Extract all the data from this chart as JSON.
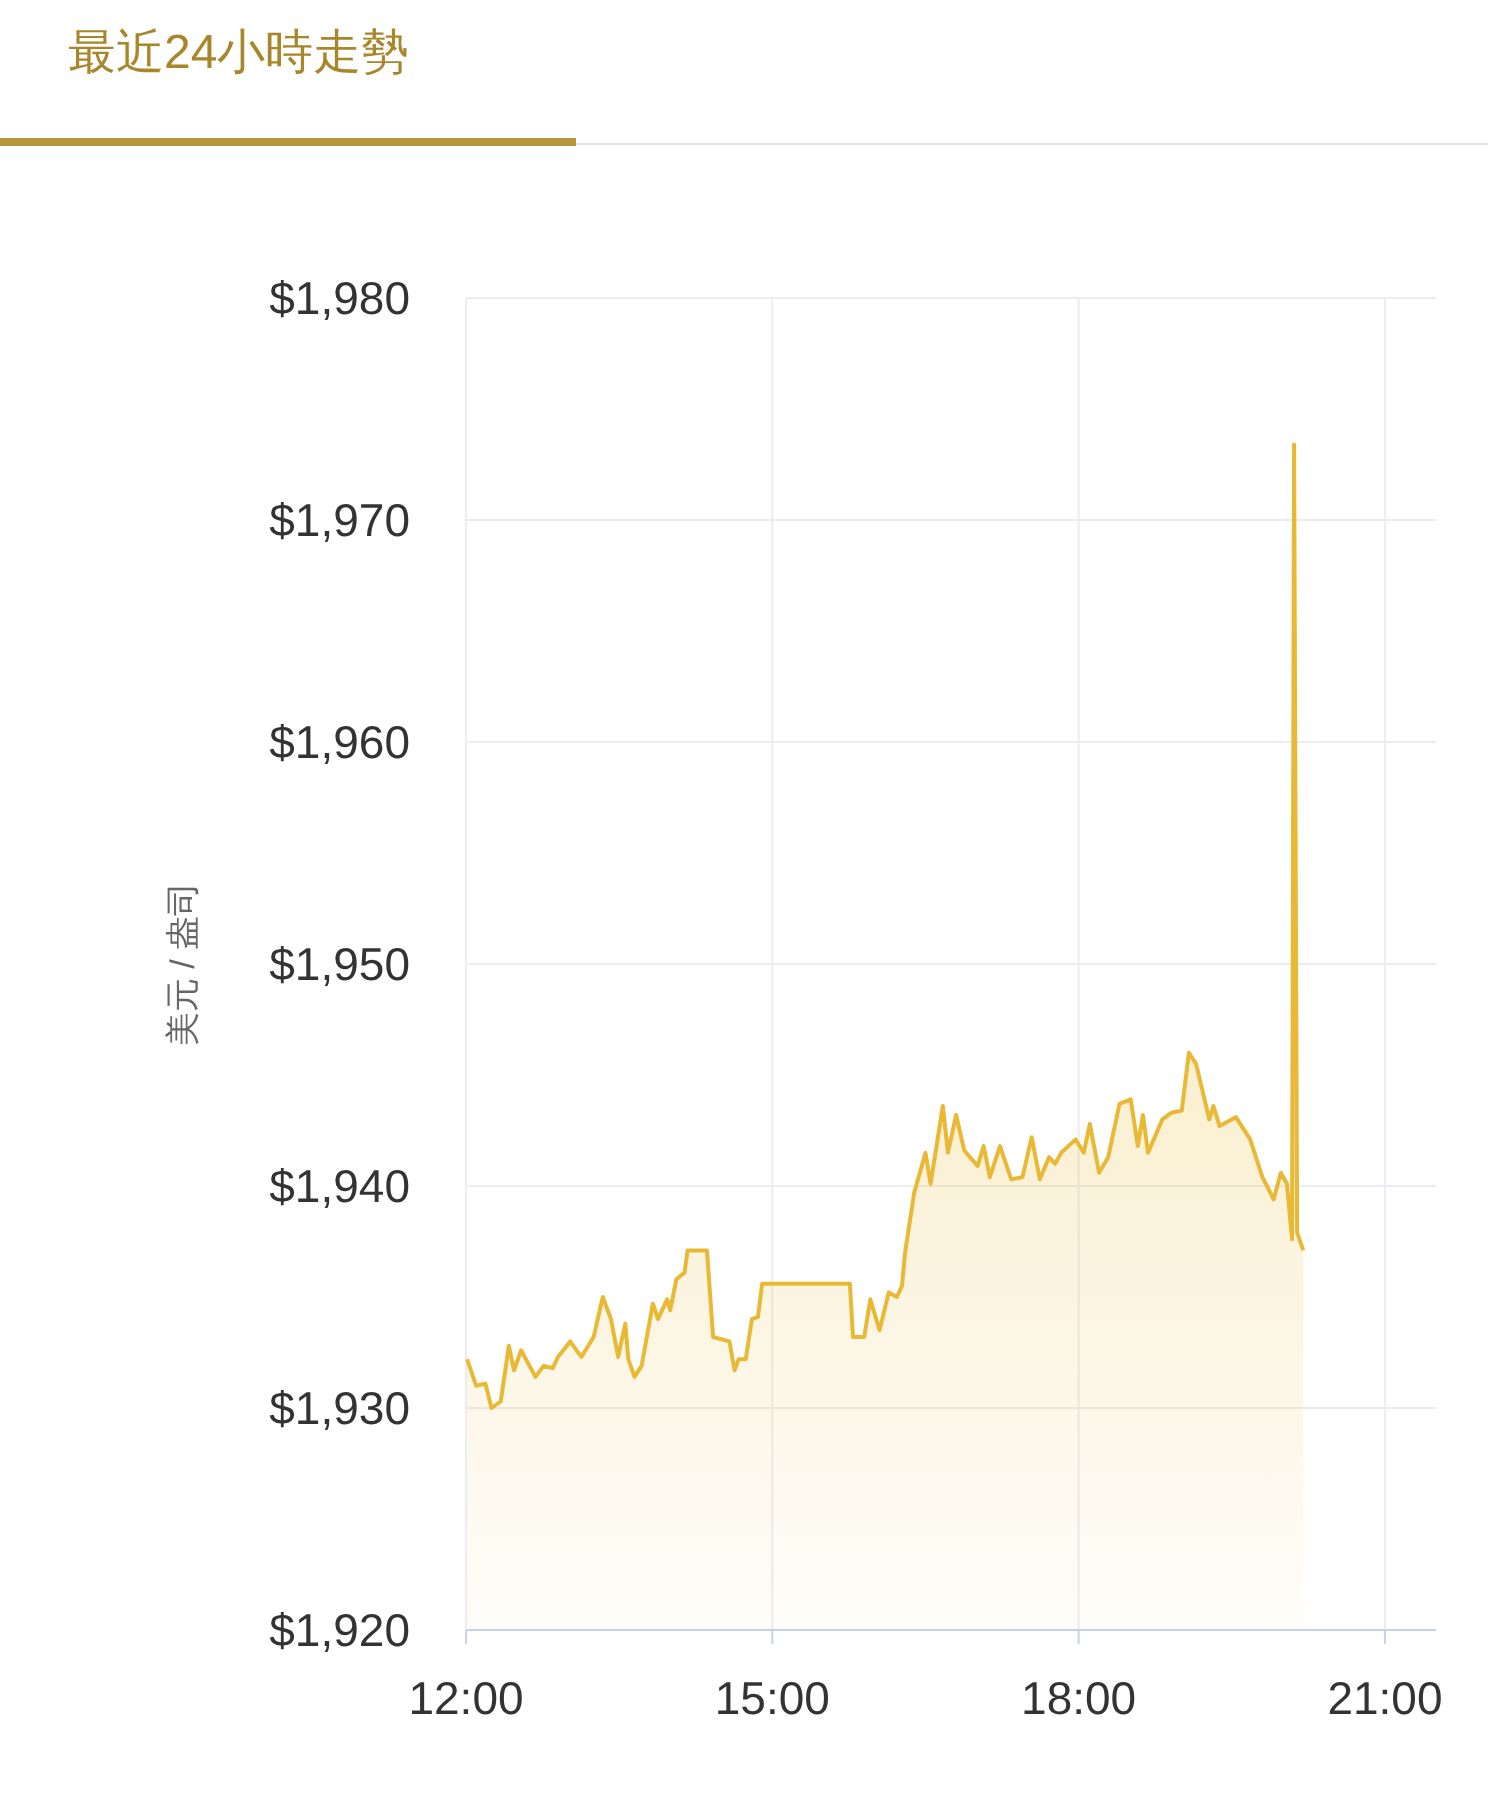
{
  "chart_data": {
    "type": "area",
    "title": "最近24小時走勢",
    "ylabel": "美元 / 盎司",
    "x": [
      12.01,
      12.1,
      12.19,
      12.25,
      12.34,
      12.42,
      12.47,
      12.54,
      12.68,
      12.76,
      12.85,
      12.9,
      13.02,
      13.13,
      13.25,
      13.34,
      13.42,
      13.49,
      13.56,
      13.59,
      13.65,
      13.72,
      13.83,
      13.88,
      13.97,
      14.0,
      14.06,
      14.14,
      14.17,
      14.36,
      14.42,
      14.58,
      14.63,
      14.67,
      14.74,
      14.8,
      14.86,
      14.9,
      15.76,
      15.79,
      15.9,
      15.96,
      16.05,
      16.14,
      16.22,
      16.27,
      16.3,
      16.39,
      16.5,
      16.55,
      16.67,
      16.72,
      16.8,
      16.88,
      17.01,
      17.07,
      17.13,
      17.23,
      17.34,
      17.45,
      17.54,
      17.62,
      17.71,
      17.77,
      17.83,
      17.97,
      18.05,
      18.11,
      18.2,
      18.29,
      18.4,
      18.51,
      18.58,
      18.63,
      18.68,
      18.82,
      18.91,
      19.01,
      19.08,
      19.15,
      19.28,
      19.32,
      19.38,
      19.54,
      19.68,
      19.8,
      19.91,
      19.98,
      20.04,
      20.09,
      20.11,
      20.14,
      20.2
    ],
    "series": [
      {
        "color": "#e9b935",
        "values": [
          1932.2,
          1931.0,
          1931.1,
          1930.0,
          1930.3,
          1932.8,
          1931.7,
          1932.6,
          1931.4,
          1931.9,
          1931.8,
          1932.3,
          1933.0,
          1932.3,
          1933.2,
          1935.0,
          1934.0,
          1932.3,
          1933.8,
          1932.2,
          1931.4,
          1931.9,
          1934.7,
          1934.0,
          1934.9,
          1934.4,
          1935.8,
          1936.1,
          1937.1,
          1937.1,
          1933.2,
          1933.0,
          1931.7,
          1932.2,
          1932.2,
          1934.0,
          1934.1,
          1935.6,
          1935.6,
          1933.2,
          1933.2,
          1934.9,
          1933.5,
          1935.2,
          1935.0,
          1935.5,
          1937.0,
          1939.7,
          1941.5,
          1940.1,
          1943.6,
          1941.5,
          1943.2,
          1941.6,
          1940.9,
          1941.8,
          1940.4,
          1941.8,
          1940.3,
          1940.4,
          1942.2,
          1940.3,
          1941.3,
          1941.0,
          1941.5,
          1942.1,
          1941.5,
          1942.8,
          1940.6,
          1941.3,
          1943.7,
          1943.9,
          1941.8,
          1943.2,
          1941.5,
          1943.0,
          1943.3,
          1943.4,
          1946.0,
          1945.5,
          1943.0,
          1943.6,
          1942.7,
          1943.1,
          1942.1,
          1940.4,
          1939.4,
          1940.6,
          1940.1,
          1937.6,
          1973.4,
          1937.9,
          1937.1
        ]
      }
    ],
    "xlim": [
      12,
      21.5
    ],
    "xticks": [
      {
        "value": 12,
        "label": "12:00"
      },
      {
        "value": 15,
        "label": "15:00"
      },
      {
        "value": 18,
        "label": "18:00"
      },
      {
        "value": 21,
        "label": "21:00"
      }
    ],
    "ylim": [
      1920,
      1980
    ],
    "yticks": [
      {
        "value": 1920,
        "label": "$1,920"
      },
      {
        "value": 1930,
        "label": "$1,930"
      },
      {
        "value": 1940,
        "label": "$1,940"
      },
      {
        "value": 1950,
        "label": "$1,950"
      },
      {
        "value": 1960,
        "label": "$1,960"
      },
      {
        "value": 1970,
        "label": "$1,970"
      },
      {
        "value": 1980,
        "label": "$1,980"
      }
    ],
    "grid": true,
    "marker": "none",
    "line_style": "solid"
  }
}
